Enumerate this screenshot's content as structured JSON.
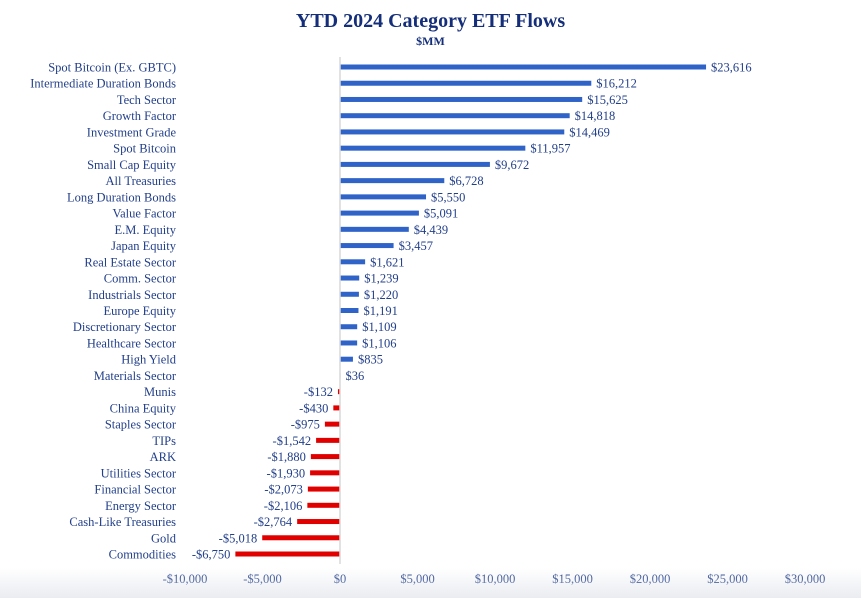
{
  "chart_data": {
    "type": "bar",
    "orientation": "horizontal",
    "title": "YTD 2024 Category ETF Flows",
    "subtitle": "$MM",
    "xlabel": "",
    "ylabel": "",
    "xlim": [
      -10000,
      30000
    ],
    "x_ticks": [
      -10000,
      -5000,
      0,
      5000,
      10000,
      15000,
      20000,
      25000,
      30000
    ],
    "x_tick_labels": [
      "-$10,000",
      "-$5,000",
      "$0",
      "$5,000",
      "$10,000",
      "$15,000",
      "$20,000",
      "$25,000",
      "$30,000"
    ],
    "grid": false,
    "legend": "none",
    "positive_color": "#2f63c8",
    "negative_color": "#e00000",
    "categories": [
      "Spot Bitcoin (Ex. GBTC)",
      "Intermediate Duration Bonds",
      "Tech Sector",
      "Growth Factor",
      "Investment Grade",
      "Spot Bitcoin",
      "Small Cap Equity",
      "All Treasuries",
      "Long Duration Bonds",
      "Value Factor",
      "E.M. Equity",
      "Japan Equity",
      "Real Estate Sector",
      "Comm. Sector",
      "Industrials Sector",
      "Europe Equity",
      "Discretionary Sector",
      "Healthcare Sector",
      "High Yield",
      "Materials Sector",
      "Munis",
      "China Equity",
      "Staples Sector",
      "TIPs",
      "ARK",
      "Utilities Sector",
      "Financial Sector",
      "Energy Sector",
      "Cash-Like Treasuries",
      "Gold",
      "Commodities"
    ],
    "values": [
      23616,
      16212,
      15625,
      14818,
      14469,
      11957,
      9672,
      6728,
      5550,
      5091,
      4439,
      3457,
      1621,
      1239,
      1220,
      1191,
      1109,
      1106,
      835,
      36,
      -132,
      -430,
      -975,
      -1542,
      -1880,
      -1930,
      -2073,
      -2106,
      -2764,
      -5018,
      -6750
    ],
    "value_labels": [
      "$23,616",
      "$16,212",
      "$15,625",
      "$14,818",
      "$14,469",
      "$11,957",
      "$9,672",
      "$6,728",
      "$5,550",
      "$5,091",
      "$4,439",
      "$3,457",
      "$1,621",
      "$1,239",
      "$1,220",
      "$1,191",
      "$1,109",
      "$1,106",
      "$835",
      "$36",
      "-$132",
      "-$430",
      "-$975",
      "-$1,542",
      "-$1,880",
      "-$1,930",
      "-$2,073",
      "-$2,106",
      "-$2,764",
      "-$5,018",
      "-$6,750"
    ]
  }
}
